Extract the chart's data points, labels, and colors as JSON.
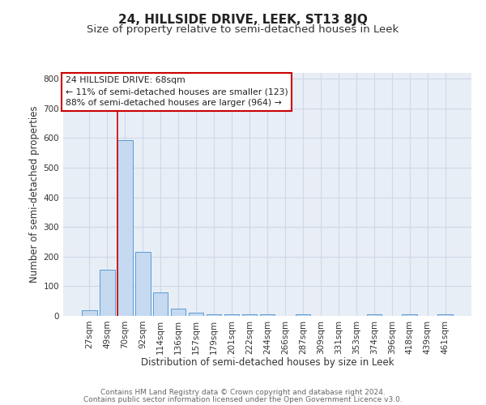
{
  "title": "24, HILLSIDE DRIVE, LEEK, ST13 8JQ",
  "subtitle": "Size of property relative to semi-detached houses in Leek",
  "xlabel": "Distribution of semi-detached houses by size in Leek",
  "ylabel": "Number of semi-detached properties",
  "bar_labels": [
    "27sqm",
    "49sqm",
    "70sqm",
    "92sqm",
    "114sqm",
    "136sqm",
    "157sqm",
    "179sqm",
    "201sqm",
    "222sqm",
    "244sqm",
    "266sqm",
    "287sqm",
    "309sqm",
    "331sqm",
    "353sqm",
    "374sqm",
    "396sqm",
    "418sqm",
    "439sqm",
    "461sqm"
  ],
  "bar_values": [
    20,
    157,
    592,
    215,
    78,
    25,
    10,
    5,
    5,
    5,
    5,
    0,
    5,
    0,
    0,
    0,
    5,
    0,
    5,
    0,
    5
  ],
  "bar_color": "#c5d9f0",
  "bar_edge_color": "#5b9bd5",
  "property_label": "24 HILLSIDE DRIVE: 68sqm",
  "annotation_line1": "← 11% of semi-detached houses are smaller (123)",
  "annotation_line2": "88% of semi-detached houses are larger (964) →",
  "ylim": [
    0,
    820
  ],
  "yticks": [
    0,
    100,
    200,
    300,
    400,
    500,
    600,
    700,
    800
  ],
  "footer_line1": "Contains HM Land Registry data © Crown copyright and database right 2024.",
  "footer_line2": "Contains public sector information licensed under the Open Government Licence v3.0.",
  "bg_color": "#ffffff",
  "plot_bg_color": "#e8eef6",
  "grid_color": "#d0d8e8",
  "title_fontsize": 11,
  "subtitle_fontsize": 9.5,
  "axis_label_fontsize": 8.5,
  "tick_fontsize": 7.5,
  "footer_fontsize": 6.5,
  "ann_fontsize": 7.8
}
